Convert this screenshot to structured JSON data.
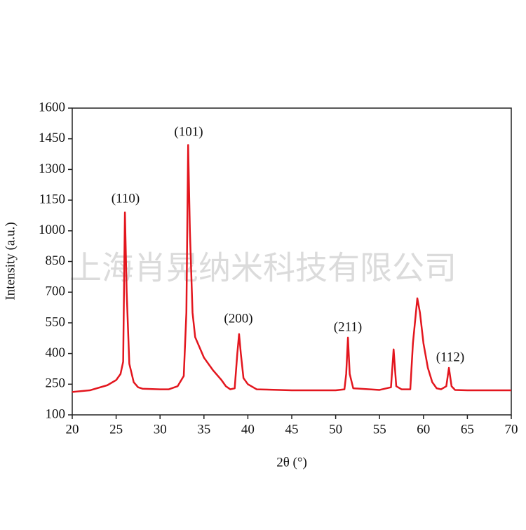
{
  "chart_data": {
    "type": "line",
    "xlabel": "2θ (°)",
    "ylabel": "Intensity (a.u.)",
    "watermark": "上海肖晃纳米科技有限公司",
    "annotations": [
      "(110)",
      "(101)",
      "(200)",
      "(211)",
      "(112)"
    ],
    "x": [
      20,
      22,
      24,
      25,
      25.5,
      25.8,
      26.0,
      26.2,
      26.5,
      27,
      27.5,
      28,
      30,
      31,
      32,
      32.7,
      33.0,
      33.2,
      33.4,
      33.7,
      34,
      35,
      36,
      37,
      37.5,
      38,
      38.5,
      38.8,
      39.0,
      39.2,
      39.5,
      40,
      41,
      45,
      50,
      51,
      51.2,
      51.4,
      51.6,
      52,
      55,
      56.3,
      56.6,
      56.9,
      57.5,
      58.5,
      58.8,
      59.3,
      59.6,
      60,
      60.5,
      61,
      61.5,
      62,
      62.6,
      62.9,
      63.2,
      63.6,
      65,
      70
    ],
    "series": [
      {
        "color": "#e3161e",
        "values": [
          212,
          220,
          245,
          270,
          300,
          360,
          1090,
          700,
          350,
          260,
          235,
          228,
          225,
          225,
          240,
          290,
          600,
          1420,
          1000,
          600,
          480,
          380,
          320,
          270,
          240,
          225,
          230,
          400,
          495,
          400,
          280,
          250,
          225,
          220,
          220,
          225,
          300,
          478,
          300,
          230,
          222,
          235,
          420,
          240,
          225,
          225,
          450,
          670,
          600,
          450,
          330,
          260,
          230,
          225,
          240,
          330,
          240,
          222,
          220,
          220
        ]
      }
    ],
    "xlim": [
      20,
      70
    ],
    "xticks": [
      20,
      25,
      30,
      35,
      40,
      45,
      50,
      55,
      60,
      65,
      70
    ],
    "ylim": [
      100,
      1600
    ],
    "yticks": [
      100,
      250,
      400,
      550,
      700,
      850,
      1000,
      1150,
      1300,
      1450,
      1600
    ]
  }
}
